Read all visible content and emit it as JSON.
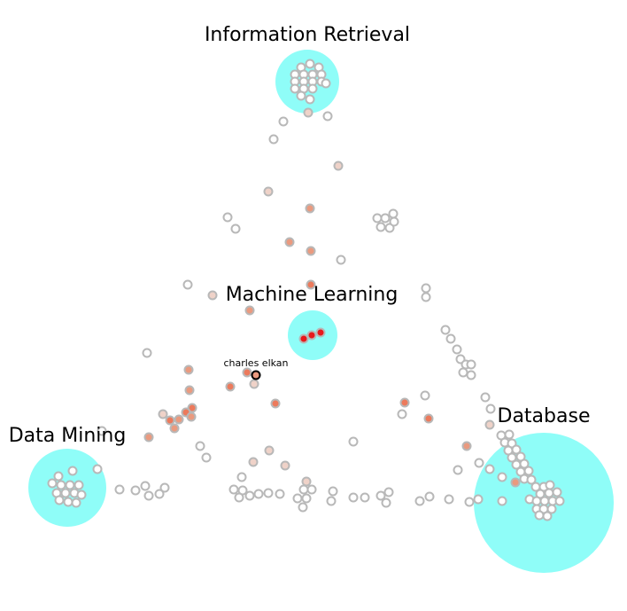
{
  "clusters": [
    {
      "id": "ir",
      "label": "Information Retrieval"
    },
    {
      "id": "ml",
      "label": "Machine Learning"
    },
    {
      "id": "dm",
      "label": "Data Mining"
    },
    {
      "id": "db",
      "label": "Database"
    }
  ],
  "highlight": {
    "label": "charles elkan"
  },
  "colors": {
    "cluster_fill": "#8ffdf8",
    "node_stroke_gray": "#b8b8b8",
    "node_fill": "#ffffff",
    "node_pale": "#efd2c8",
    "node_salmon": "#ea9a7f",
    "node_orange": "#ec7a5c",
    "node_red": "#e8191c",
    "selected_stroke": "#000000"
  }
}
